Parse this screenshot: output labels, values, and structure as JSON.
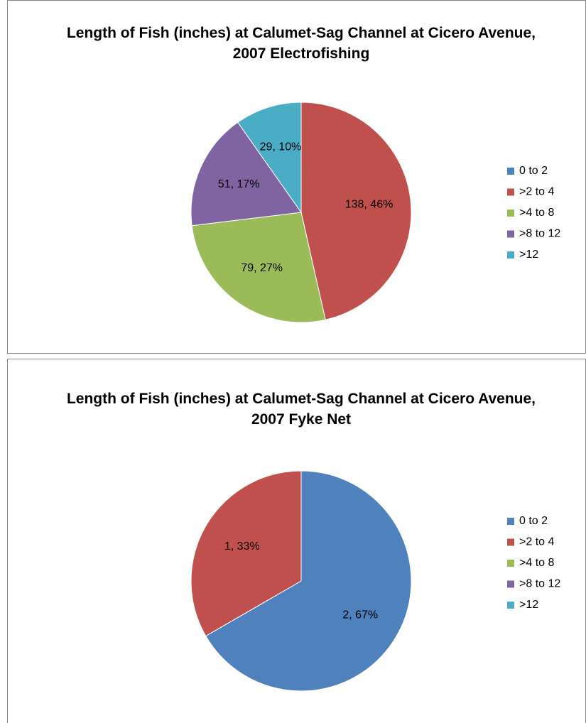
{
  "chart_data": [
    {
      "type": "pie",
      "title": "Length of Fish (inches) at Calumet-Sag Channel at Cicero Avenue, 2007 Electrofishing",
      "categories": [
        "0 to 2",
        ">2 to 4",
        ">4 to 8",
        ">8 to 12",
        ">12"
      ],
      "values": [
        0,
        138,
        79,
        51,
        29
      ],
      "value_labels": [
        null,
        "138, 46%",
        "79, 27%",
        "51, 17%",
        "29, 10%"
      ],
      "colors": [
        "#4f81bd",
        "#c0504d",
        "#9bbb59",
        "#8064a2",
        "#4bacc6"
      ],
      "legend": "right"
    },
    {
      "type": "pie",
      "title": "Length of Fish (inches) at Calumet-Sag Channel at Cicero Avenue, 2007 Fyke Net",
      "categories": [
        "0 to 2",
        ">2 to 4",
        ">4 to 8",
        ">8 to 12",
        ">12"
      ],
      "values": [
        2,
        1,
        0,
        0,
        0
      ],
      "value_labels": [
        "2, 67%",
        "1, 33%",
        null,
        null,
        null
      ],
      "colors": [
        "#4f81bd",
        "#c0504d",
        "#9bbb59",
        "#8064a2",
        "#4bacc6"
      ],
      "legend": "right"
    }
  ]
}
